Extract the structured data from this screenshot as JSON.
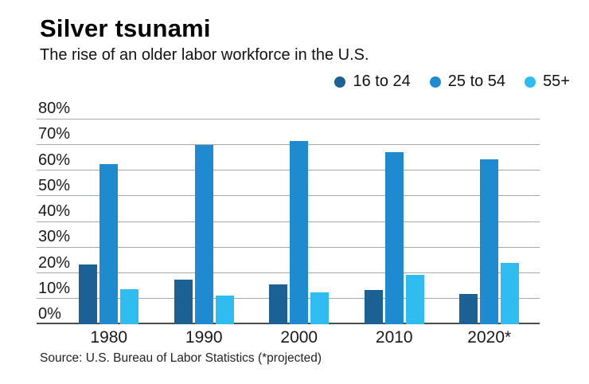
{
  "header": {
    "title": "Silver tsunami",
    "subtitle": "The rise of an older labor workforce in the U.S."
  },
  "footer": {
    "source": "Source: U.S. Bureau of Labor Statistics (*projected)"
  },
  "colors": {
    "series_16_24": "#1c6194",
    "series_25_54": "#1e8bd1",
    "series_55_plus": "#2fbdf1",
    "gridline": "#a8a8a8",
    "baseline": "#4c4d4f",
    "text": "#1a1a1a"
  },
  "chart_data": {
    "type": "bar",
    "title": "Silver tsunami",
    "subtitle": "The rise of an older labor workforce in the U.S.",
    "categories": [
      "1980",
      "1990",
      "2000",
      "2010",
      "2020*"
    ],
    "series": [
      {
        "name": "16 to 24",
        "color": "#1c6194",
        "values": [
          23.4,
          17.3,
          15.5,
          13.3,
          11.7
        ]
      },
      {
        "name": "25 to 54",
        "color": "#1e8bd1",
        "values": [
          62.3,
          69.9,
          71.2,
          66.9,
          64.1
        ]
      },
      {
        "name": "55+",
        "color": "#2fbdf1",
        "values": [
          13.6,
          11.3,
          12.5,
          19.1,
          24.0
        ]
      }
    ],
    "xlabel": "",
    "ylabel": "",
    "ylim": [
      0,
      80
    ],
    "y_tick_step": 10,
    "y_tick_suffix": "%",
    "grid": true,
    "legend_position": "top-right",
    "note": "*projected"
  }
}
